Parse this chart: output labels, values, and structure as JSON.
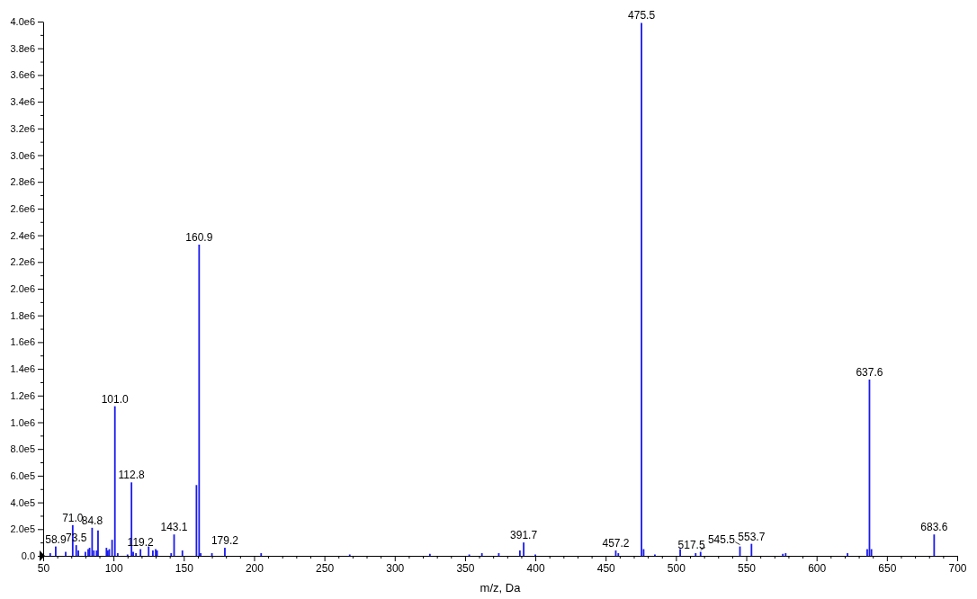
{
  "chart_data": {
    "type": "bar",
    "xlabel": "m/z, Da",
    "color": "#1a1aee",
    "x": [
      55,
      58.9,
      66,
      71.0,
      73.5,
      75,
      80,
      82,
      83,
      84.8,
      86,
      88,
      89,
      95,
      96,
      97,
      99,
      101.0,
      103,
      110,
      112.8,
      114,
      116,
      119.2,
      125,
      128,
      130,
      131,
      141,
      143.1,
      149,
      159,
      160.9,
      162,
      170,
      179.2,
      205,
      268,
      325,
      353,
      362,
      374,
      389,
      391.7,
      400,
      457.2,
      459,
      475.5,
      477,
      485,
      503,
      514,
      517.5,
      545.5,
      553.7,
      576,
      578,
      622,
      636,
      637.6,
      639,
      683.6
    ],
    "values": [
      20000,
      70000,
      30000,
      230000,
      80000,
      40000,
      30000,
      50000,
      60000,
      210000,
      40000,
      40000,
      190000,
      60000,
      40000,
      50000,
      120000,
      1120000,
      20000,
      10000,
      550000,
      30000,
      20000,
      50000,
      70000,
      40000,
      50000,
      40000,
      20000,
      160000,
      40000,
      530000,
      2330000,
      20000,
      20000,
      60000,
      20000,
      10000,
      15000,
      10000,
      20000,
      20000,
      40000,
      100000,
      10000,
      40000,
      20000,
      3990000,
      50000,
      10000,
      50000,
      20000,
      30000,
      70000,
      90000,
      15000,
      20000,
      20000,
      50000,
      1320000,
      50000,
      160000
    ],
    "xlim": [
      50,
      700
    ],
    "xticks": [
      50,
      {
        "value": 60,
        "label": null
      },
      {
        "value": 70,
        "label": null
      },
      {
        "value": 80,
        "label": null
      },
      {
        "value": 90,
        "label": null
      },
      100,
      {
        "value": 110,
        "label": null
      },
      {
        "value": 120,
        "label": null
      },
      {
        "value": 130,
        "label": null
      },
      {
        "value": 140,
        "label": null
      },
      150,
      {
        "value": 160,
        "label": null
      },
      {
        "value": 170,
        "label": null
      },
      {
        "value": 180,
        "label": null
      },
      {
        "value": 190,
        "label": null
      },
      200,
      {
        "value": 210,
        "label": null
      },
      {
        "value": 220,
        "label": null
      },
      {
        "value": 230,
        "label": null
      },
      {
        "value": 240,
        "label": null
      },
      250,
      {
        "value": 260,
        "label": null
      },
      {
        "value": 270,
        "label": null
      },
      {
        "value": 280,
        "label": null
      },
      {
        "value": 290,
        "label": null
      },
      300,
      {
        "value": 310,
        "label": null
      },
      {
        "value": 320,
        "label": null
      },
      {
        "value": 330,
        "label": null
      },
      {
        "value": 340,
        "label": null
      },
      350,
      {
        "value": 360,
        "label": null
      },
      {
        "value": 370,
        "label": null
      },
      {
        "value": 380,
        "label": null
      },
      {
        "value": 390,
        "label": null
      },
      400,
      {
        "value": 410,
        "label": null
      },
      {
        "value": 420,
        "label": null
      },
      {
        "value": 430,
        "label": null
      },
      {
        "value": 440,
        "label": null
      },
      450,
      {
        "value": 460,
        "label": null
      },
      {
        "value": 470,
        "label": null
      },
      {
        "value": 480,
        "label": null
      },
      {
        "value": 490,
        "label": null
      },
      500,
      {
        "value": 510,
        "label": null
      },
      {
        "value": 520,
        "label": null
      },
      {
        "value": 530,
        "label": null
      },
      {
        "value": 540,
        "label": null
      },
      550,
      {
        "value": 560,
        "label": null
      },
      {
        "value": 570,
        "label": null
      },
      {
        "value": 580,
        "label": null
      },
      {
        "value": 590,
        "label": null
      },
      600,
      {
        "value": 610,
        "label": null
      },
      {
        "value": 620,
        "label": null
      },
      {
        "value": 630,
        "label": null
      },
      {
        "value": 640,
        "label": null
      },
      650,
      {
        "value": 660,
        "label": null
      },
      {
        "value": 670,
        "label": null
      },
      {
        "value": 680,
        "label": null
      },
      {
        "value": 690,
        "label": null
      },
      700
    ],
    "ylim": [
      0,
      4000000
    ],
    "yticks": [
      {
        "value": 0,
        "label": "0.0"
      },
      {
        "value": 100000,
        "label": null
      },
      {
        "value": 200000,
        "label": "2.0e5"
      },
      {
        "value": 300000,
        "label": null
      },
      {
        "value": 400000,
        "label": "4.0e5"
      },
      {
        "value": 500000,
        "label": null
      },
      {
        "value": 600000,
        "label": "6.0e5"
      },
      {
        "value": 700000,
        "label": null
      },
      {
        "value": 800000,
        "label": "8.0e5"
      },
      {
        "value": 900000,
        "label": null
      },
      {
        "value": 1000000,
        "label": "1.0e6"
      },
      {
        "value": 1100000,
        "label": null
      },
      {
        "value": 1200000,
        "label": "1.2e6"
      },
      {
        "value": 1300000,
        "label": null
      },
      {
        "value": 1400000,
        "label": "1.4e6"
      },
      {
        "value": 1500000,
        "label": null
      },
      {
        "value": 1600000,
        "label": "1.6e6"
      },
      {
        "value": 1700000,
        "label": null
      },
      {
        "value": 1800000,
        "label": "1.8e6"
      },
      {
        "value": 1900000,
        "label": null
      },
      {
        "value": 2000000,
        "label": "2.0e6"
      },
      {
        "value": 2100000,
        "label": null
      },
      {
        "value": 2200000,
        "label": "2.2e6"
      },
      {
        "value": 2300000,
        "label": null
      },
      {
        "value": 2400000,
        "label": "2.4e6"
      },
      {
        "value": 2500000,
        "label": null
      },
      {
        "value": 2600000,
        "label": "2.6e6"
      },
      {
        "value": 2700000,
        "label": null
      },
      {
        "value": 2800000,
        "label": "2.8e6"
      },
      {
        "value": 2900000,
        "label": null
      },
      {
        "value": 3000000,
        "label": "3.0e6"
      },
      {
        "value": 3100000,
        "label": null
      },
      {
        "value": 3200000,
        "label": "3.2e6"
      },
      {
        "value": 3300000,
        "label": null
      },
      {
        "value": 3400000,
        "label": "3.4e6"
      },
      {
        "value": 3500000,
        "label": null
      },
      {
        "value": 3600000,
        "label": "3.6e6"
      },
      {
        "value": 3700000,
        "label": null
      },
      {
        "value": 3800000,
        "label": "3.8e6"
      },
      {
        "value": 3900000,
        "label": null
      },
      {
        "value": 4000000,
        "label": "4.0e6"
      }
    ],
    "annotations": [
      {
        "text": "58.9",
        "x": 58.9,
        "y": 70000
      },
      {
        "text": "71.0",
        "x": 71.0,
        "y": 230000
      },
      {
        "text": "73.5",
        "x": 73.5,
        "y": 80000
      },
      {
        "text": "84.8",
        "x": 84.8,
        "y": 210000
      },
      {
        "text": "101.0",
        "x": 101.0,
        "y": 1120000
      },
      {
        "text": "112.8",
        "x": 112.8,
        "y": 550000
      },
      {
        "text": "119.2",
        "x": 119.2,
        "y": 50000
      },
      {
        "text": "143.1",
        "x": 143.1,
        "y": 160000
      },
      {
        "text": "160.9",
        "x": 160.9,
        "y": 2330000
      },
      {
        "text": "179.2",
        "x": 179.2,
        "y": 60000
      },
      {
        "text": "391.7",
        "x": 391.7,
        "y": 100000
      },
      {
        "text": "457.2",
        "x": 457.2,
        "y": 40000
      },
      {
        "text": "475.5",
        "x": 475.5,
        "y": 3990000
      },
      {
        "text": "517.5",
        "x": 517.5,
        "y": 30000
      },
      {
        "text": "545.5",
        "x": 545.5,
        "y": 70000
      },
      {
        "text": "553.7",
        "x": 553.7,
        "y": 90000
      },
      {
        "text": "637.6",
        "x": 637.6,
        "y": 1320000
      },
      {
        "text": "683.6",
        "x": 683.6,
        "y": 160000
      }
    ]
  }
}
